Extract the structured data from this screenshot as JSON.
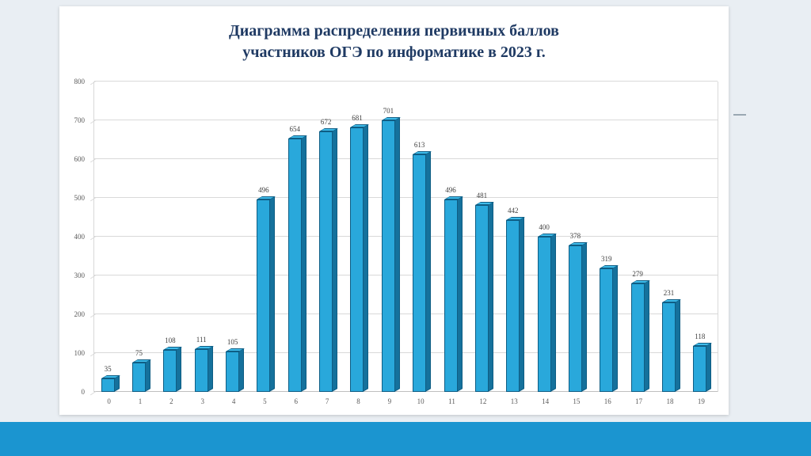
{
  "slide": {
    "title_line1": "Диаграмма распределения первичных баллов",
    "title_line2": "участников ОГЭ по информатике в 2023 г."
  },
  "chart_data": {
    "type": "bar",
    "title": "Диаграмма распределения первичных баллов участников ОГЭ по информатике в 2023 г.",
    "categories": [
      "0",
      "1",
      "2",
      "3",
      "4",
      "5",
      "6",
      "7",
      "8",
      "9",
      "10",
      "11",
      "12",
      "13",
      "14",
      "15",
      "16",
      "17",
      "18",
      "19"
    ],
    "values": [
      35,
      75,
      108,
      111,
      105,
      496,
      654,
      672,
      681,
      701,
      613,
      496,
      481,
      442,
      400,
      378,
      319,
      279,
      231,
      118
    ],
    "xlabel": "",
    "ylabel": "",
    "ylim": [
      0,
      800
    ],
    "ytick_step": 100,
    "grid": true,
    "legend": "none",
    "style": "3d-box-bars"
  },
  "colors": {
    "page_background": "#E9EEF3",
    "bottom_band": "#1B95D0",
    "title": "#1F3A63",
    "tick_labels": "#595959",
    "gridline": "#D9D9D9",
    "bar_front": "#29A8DB",
    "bar_side": "#15719C",
    "bar_top": "#3FBCEA",
    "bar_edge": "#0E5D84"
  }
}
